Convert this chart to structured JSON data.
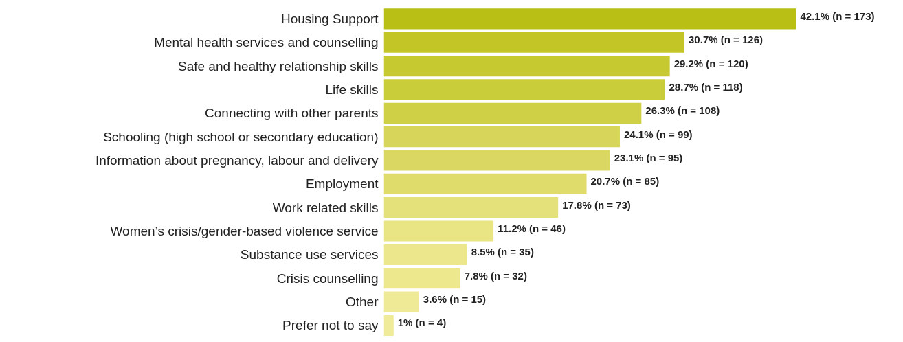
{
  "chart_data": {
    "type": "bar",
    "orientation": "horizontal",
    "categories": [
      "Housing Support",
      "Mental health services and counselling",
      "Safe and healthy relationship skills",
      "Life skills",
      "Connecting with other parents",
      "Schooling (high school or secondary education)",
      "Information about pregnancy, labour and delivery",
      "Employment",
      "Work related skills",
      "Women’s crisis/gender-based violence service",
      "Substance use services",
      "Crisis counselling",
      "Other",
      "Prefer not to say"
    ],
    "values": [
      42.1,
      30.7,
      29.2,
      28.7,
      26.3,
      24.1,
      23.1,
      20.7,
      17.8,
      11.2,
      8.5,
      7.8,
      3.6,
      1
    ],
    "colors": [
      "#b9bf14",
      "#c2c525",
      "#c6c92f",
      "#cacd3a",
      "#cfd045",
      "#d7d65a",
      "#dad862",
      "#dfdc6c",
      "#e4e07a",
      "#e9e484",
      "#ece78c",
      "#ede88e",
      "#efea95",
      "#f0eb98"
    ],
    "value_labels": [
      "42.1% (n = 173)",
      "30.7% (n = 126)",
      "29.2% (n = 120)",
      "28.7% (n = 118)",
      "26.3% (n = 108)",
      "24.1% (n = 99)",
      "23.1% (n = 95)",
      "20.7% (n = 85)",
      "17.8% (n = 73)",
      "11.2% (n = 46)",
      "8.5% (n = 35)",
      "7.8% (n = 32)",
      "3.6% (n = 15)",
      "1% (n = 4)"
    ]
  }
}
